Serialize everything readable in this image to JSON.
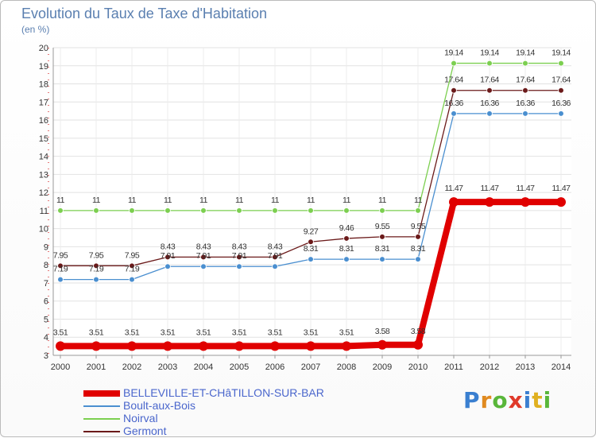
{
  "chart_data": {
    "type": "line",
    "title": "Evolution du Taux de Taxe d'Habitation",
    "subtitle": "(en %)",
    "x": [
      "2000",
      "2001",
      "2002",
      "2003",
      "2004",
      "2005",
      "2006",
      "2007",
      "2008",
      "2009",
      "2010",
      "2011",
      "2012",
      "2013",
      "2014"
    ],
    "ylim": [
      3,
      20
    ],
    "yticks": [
      3,
      4,
      5,
      6,
      7,
      8,
      9,
      10,
      11,
      12,
      13,
      14,
      15,
      16,
      17,
      18,
      19,
      20
    ],
    "grid": true,
    "legend_position": "bottom-left",
    "series": [
      {
        "name": "BELLEVILLE-ET-CHâTILLON-SUR-BAR",
        "color": "#e00000",
        "values": [
          3.51,
          3.51,
          3.51,
          3.51,
          3.51,
          3.51,
          3.51,
          3.51,
          3.51,
          3.58,
          3.58,
          11.47,
          11.47,
          11.47,
          11.47
        ],
        "labels": [
          "3.51",
          "3.51",
          "3.51",
          "3.51",
          "3.51",
          "3.51",
          "3.51",
          "3.51",
          "3.51",
          "3.58",
          "3.58",
          "11.47",
          "11.47",
          "11.47",
          "11.47"
        ]
      },
      {
        "name": "Boult-aux-Bois",
        "color": "#4a8fd0",
        "values": [
          7.19,
          7.19,
          7.19,
          7.91,
          7.91,
          7.91,
          7.91,
          8.31,
          8.31,
          8.31,
          8.31,
          16.36,
          16.36,
          16.36,
          16.36
        ],
        "labels": [
          "7.19",
          "7.19",
          "7.19",
          "7.91",
          "7.91",
          "7.91",
          "7.91",
          "8.31",
          "8.31",
          "8.31",
          "8.31",
          "16.36",
          "16.36",
          "16.36",
          "16.36"
        ]
      },
      {
        "name": "Noirval",
        "color": "#7ccf50",
        "values": [
          11,
          11,
          11,
          11,
          11,
          11,
          11,
          11,
          11,
          11,
          11,
          19.14,
          19.14,
          19.14,
          19.14
        ],
        "labels": [
          "11",
          "11",
          "11",
          "11",
          "11",
          "11",
          "11",
          "11",
          "11",
          "11",
          "11",
          "19.14",
          "19.14",
          "19.14",
          "19.14"
        ]
      },
      {
        "name": "Germont",
        "color": "#6b1a1a",
        "values": [
          7.95,
          7.95,
          7.95,
          8.43,
          8.43,
          8.43,
          8.43,
          9.27,
          9.46,
          9.55,
          9.55,
          17.64,
          17.64,
          17.64,
          17.64
        ],
        "labels": [
          "7.95",
          "7.95",
          "7.95",
          "8.43",
          "8.43",
          "8.43",
          "8.43",
          "9.27",
          "9.46",
          "9.55",
          "9.55",
          "17.64",
          "17.64",
          "17.64",
          "17.64"
        ]
      }
    ]
  },
  "logo": {
    "text": "Proxiti",
    "letters": [
      "P",
      "r",
      "o",
      "x",
      "i",
      "t",
      "i"
    ]
  }
}
